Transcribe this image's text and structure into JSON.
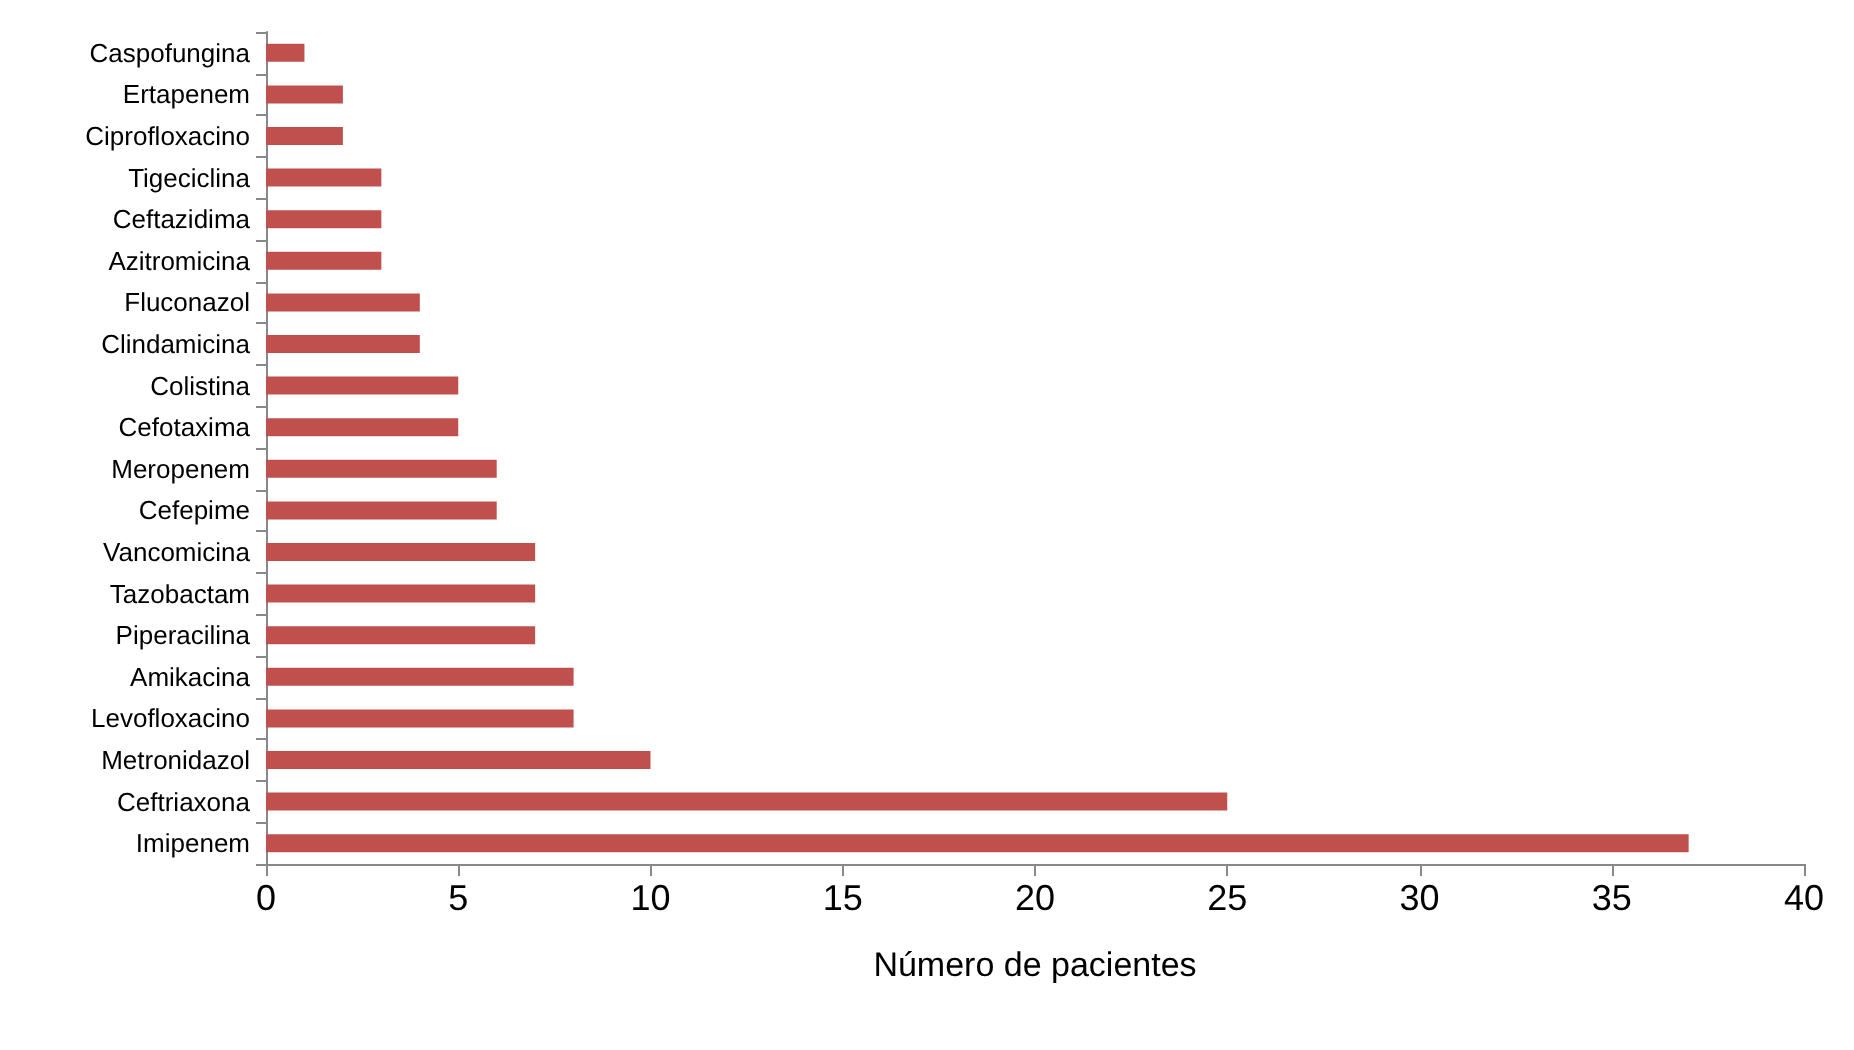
{
  "chart_data": {
    "type": "bar",
    "orientation": "horizontal",
    "xlabel": "Número de pacientes",
    "categories": [
      "Caspofungina",
      "Ertapenem",
      "Ciprofloxacino",
      "Tigeciclina",
      "Ceftazidima",
      "Azitromicina",
      "Fluconazol",
      "Clindamicina",
      "Colistina",
      "Cefotaxima",
      "Meropenem",
      "Cefepime",
      "Vancomicina",
      "Tazobactam",
      "Piperacilina",
      "Amikacina",
      "Levofloxacino",
      "Metronidazol",
      "Ceftriaxona",
      "Imipenem"
    ],
    "values": [
      1,
      2,
      2,
      3,
      3,
      3,
      4,
      4,
      5,
      5,
      6,
      6,
      7,
      7,
      7,
      8,
      8,
      10,
      25,
      37
    ],
    "color": "#c0504d",
    "xlim": [
      0,
      40
    ],
    "xticks": [
      0,
      5,
      10,
      15,
      20,
      25,
      30,
      35,
      40
    ],
    "grid": false
  }
}
